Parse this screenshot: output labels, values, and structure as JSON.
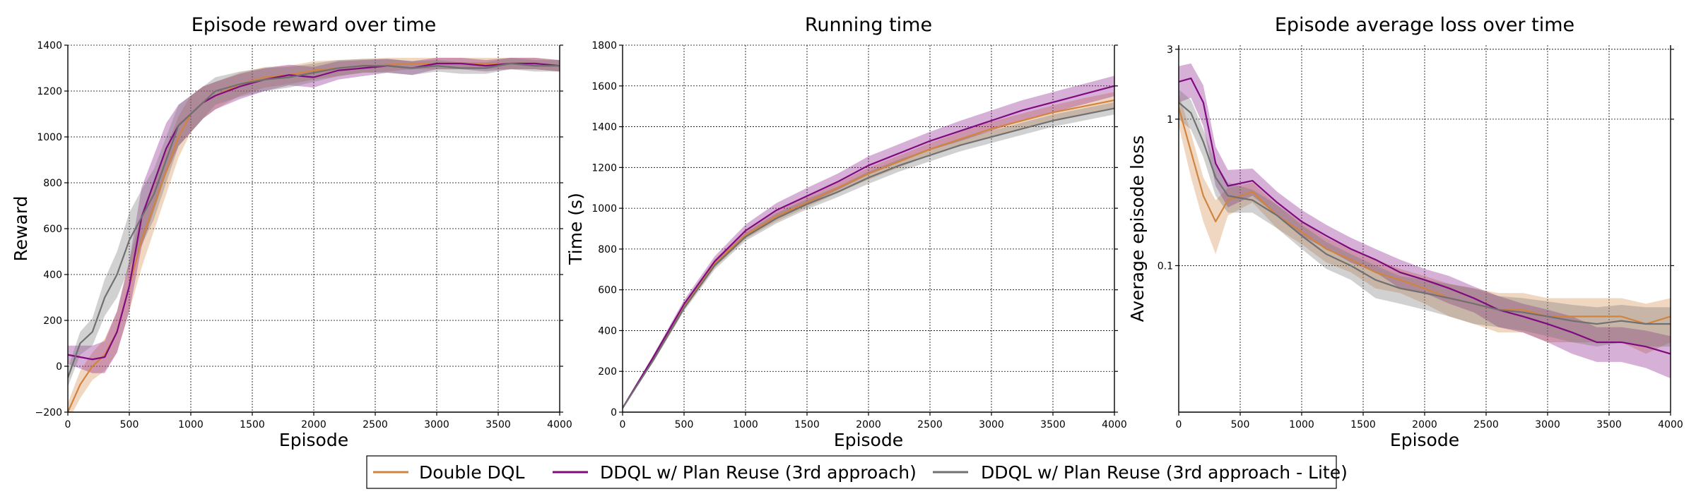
{
  "colors": {
    "double_dql": "#d1843e",
    "ddql_plan_reuse": "#800a80",
    "ddql_plan_reuse_lite": "#707070",
    "grid": "#000000",
    "axes": "#000000"
  },
  "legend": {
    "placement": "bottom-center",
    "items": [
      {
        "label": "Double DQL",
        "color": "#d1843e"
      },
      {
        "label": "DDQL w/ Plan Reuse (3rd approach)",
        "color": "#800a80"
      },
      {
        "label": "DDQL w/ Plan Reuse (3rd approach - Lite)",
        "color": "#707070"
      }
    ]
  },
  "chart_data": [
    {
      "type": "line",
      "title": "Episode reward over time",
      "xlabel": "Episode",
      "ylabel": "Reward",
      "xlim": [
        0,
        4000
      ],
      "ylim": [
        -200,
        1400
      ],
      "xticks": [
        "0",
        "500",
        "1000",
        "1500",
        "2000",
        "2500",
        "3000",
        "3500",
        "4000"
      ],
      "yticks": [
        "−200",
        "0",
        "200",
        "400",
        "600",
        "800",
        "1000",
        "1200",
        "1400"
      ],
      "grid": true,
      "shaded_band": true,
      "series": [
        {
          "name": "Double DQL",
          "x": [
            0,
            100,
            200,
            300,
            400,
            500,
            600,
            700,
            800,
            900,
            1000,
            1100,
            1200,
            1400,
            1600,
            1800,
            2000,
            2200,
            2400,
            2600,
            2800,
            3000,
            3200,
            3400,
            3600,
            3800,
            4000
          ],
          "y": [
            -200,
            -80,
            0,
            50,
            150,
            350,
            550,
            700,
            850,
            1000,
            1100,
            1150,
            1180,
            1230,
            1260,
            1270,
            1290,
            1300,
            1310,
            1315,
            1320,
            1320,
            1320,
            1320,
            1320,
            1320,
            1310
          ],
          "spread": [
            40,
            60,
            60,
            70,
            90,
            110,
            120,
            110,
            100,
            90,
            80,
            70,
            60,
            50,
            45,
            40,
            40,
            35,
            30,
            30,
            25,
            25,
            25,
            25,
            25,
            25,
            25
          ]
        },
        {
          "name": "DDQL w/ Plan Reuse (3rd approach)",
          "x": [
            0,
            100,
            200,
            300,
            400,
            500,
            600,
            700,
            800,
            900,
            1000,
            1100,
            1200,
            1400,
            1600,
            1800,
            2000,
            2200,
            2400,
            2600,
            2800,
            3000,
            3200,
            3400,
            3600,
            3800,
            4000
          ],
          "y": [
            50,
            40,
            30,
            40,
            150,
            350,
            650,
            800,
            950,
            1050,
            1100,
            1150,
            1180,
            1220,
            1250,
            1270,
            1260,
            1290,
            1300,
            1310,
            1300,
            1320,
            1320,
            1310,
            1320,
            1320,
            1310
          ],
          "spread": [
            40,
            50,
            60,
            70,
            90,
            110,
            130,
            120,
            110,
            90,
            80,
            70,
            60,
            55,
            50,
            45,
            45,
            40,
            35,
            30,
            30,
            25,
            25,
            25,
            25,
            25,
            25
          ]
        },
        {
          "name": "DDQL w/ Plan Reuse (3rd approach - Lite)",
          "x": [
            0,
            100,
            200,
            300,
            400,
            500,
            600,
            700,
            800,
            900,
            1000,
            1100,
            1200,
            1400,
            1600,
            1800,
            2000,
            2200,
            2400,
            2600,
            2800,
            3000,
            3200,
            3400,
            3600,
            3800,
            4000
          ],
          "y": [
            -50,
            100,
            150,
            300,
            400,
            550,
            650,
            750,
            900,
            1050,
            1100,
            1150,
            1200,
            1230,
            1250,
            1260,
            1280,
            1300,
            1310,
            1310,
            1300,
            1310,
            1300,
            1300,
            1320,
            1310,
            1310
          ],
          "spread": [
            40,
            50,
            60,
            80,
            100,
            120,
            120,
            110,
            100,
            90,
            80,
            70,
            60,
            55,
            50,
            45,
            40,
            35,
            30,
            30,
            30,
            25,
            25,
            25,
            25,
            25,
            25
          ]
        }
      ]
    },
    {
      "type": "line",
      "title": "Running time",
      "xlabel": "Episode",
      "ylabel": "Time (s)",
      "xlim": [
        0,
        4000
      ],
      "ylim": [
        0,
        1800
      ],
      "xticks": [
        "0",
        "500",
        "1000",
        "1500",
        "2000",
        "2500",
        "3000",
        "3500",
        "4000"
      ],
      "yticks": [
        "0",
        "200",
        "400",
        "600",
        "800",
        "1000",
        "1200",
        "1400",
        "1600",
        "1800"
      ],
      "grid": true,
      "shaded_band": true,
      "series": [
        {
          "name": "Double DQL",
          "x": [
            0,
            250,
            500,
            750,
            1000,
            1250,
            1500,
            1750,
            2000,
            2250,
            2500,
            2750,
            3000,
            3250,
            3500,
            3750,
            4000
          ],
          "y": [
            20,
            260,
            520,
            730,
            870,
            960,
            1030,
            1100,
            1170,
            1230,
            1290,
            1340,
            1390,
            1430,
            1470,
            1500,
            1530
          ],
          "spread": [
            0,
            10,
            15,
            20,
            20,
            25,
            25,
            25,
            30,
            30,
            30,
            35,
            35,
            35,
            35,
            40,
            40
          ]
        },
        {
          "name": "DDQL w/ Plan Reuse (3rd approach)",
          "x": [
            0,
            250,
            500,
            750,
            1000,
            1250,
            1500,
            1750,
            2000,
            2250,
            2500,
            2750,
            3000,
            3250,
            3500,
            3750,
            4000
          ],
          "y": [
            20,
            270,
            530,
            740,
            890,
            990,
            1060,
            1130,
            1210,
            1270,
            1330,
            1380,
            1430,
            1480,
            1520,
            1560,
            1600
          ],
          "spread": [
            0,
            10,
            20,
            25,
            30,
            35,
            40,
            40,
            45,
            45,
            45,
            50,
            50,
            50,
            50,
            50,
            50
          ]
        },
        {
          "name": "DDQL w/ Plan Reuse (3rd approach - Lite)",
          "x": [
            0,
            250,
            500,
            750,
            1000,
            1250,
            1500,
            1750,
            2000,
            2250,
            2500,
            2750,
            3000,
            3250,
            3500,
            3750,
            4000
          ],
          "y": [
            20,
            255,
            510,
            720,
            860,
            950,
            1020,
            1080,
            1150,
            1210,
            1260,
            1310,
            1350,
            1390,
            1430,
            1460,
            1490
          ],
          "spread": [
            0,
            10,
            15,
            20,
            20,
            25,
            25,
            25,
            30,
            30,
            30,
            30,
            30,
            30,
            30,
            30,
            30
          ]
        }
      ]
    },
    {
      "type": "line",
      "title": "Episode average loss over time",
      "xlabel": "Episode",
      "ylabel": "Average episode loss",
      "xlim": [
        0,
        4000
      ],
      "ylim": [
        0.01,
        3.2
      ],
      "yscale": "log",
      "xticks": [
        "0",
        "500",
        "1000",
        "1500",
        "2000",
        "2500",
        "3000",
        "3500",
        "4000"
      ],
      "yticks": [
        "0.1",
        "1",
        "3"
      ],
      "grid": true,
      "shaded_band": true,
      "series": [
        {
          "name": "Double DQL",
          "x": [
            0,
            100,
            200,
            300,
            400,
            600,
            800,
            1000,
            1200,
            1400,
            1600,
            1800,
            2000,
            2200,
            2400,
            2600,
            2800,
            3000,
            3200,
            3400,
            3600,
            3800,
            4000
          ],
          "y": [
            1.2,
            0.6,
            0.3,
            0.2,
            0.28,
            0.32,
            0.22,
            0.17,
            0.13,
            0.11,
            0.09,
            0.08,
            0.07,
            0.06,
            0.055,
            0.05,
            0.05,
            0.045,
            0.045,
            0.045,
            0.045,
            0.04,
            0.045
          ],
          "spread": [
            0.3,
            0.2,
            0.1,
            0.08,
            0.06,
            0.05,
            0.04,
            0.03,
            0.025,
            0.02,
            0.02,
            0.015,
            0.015,
            0.015,
            0.015,
            0.015,
            0.015,
            0.015,
            0.015,
            0.015,
            0.015,
            0.015,
            0.015
          ]
        },
        {
          "name": "DDQL w/ Plan Reuse (3rd approach)",
          "x": [
            0,
            100,
            200,
            300,
            400,
            600,
            800,
            1000,
            1200,
            1400,
            1600,
            1800,
            2000,
            2200,
            2400,
            2600,
            2800,
            3000,
            3200,
            3400,
            3600,
            3800,
            4000
          ],
          "y": [
            1.8,
            1.9,
            1.3,
            0.5,
            0.35,
            0.38,
            0.27,
            0.2,
            0.16,
            0.13,
            0.11,
            0.09,
            0.08,
            0.07,
            0.06,
            0.05,
            0.045,
            0.04,
            0.035,
            0.03,
            0.03,
            0.028,
            0.025
          ],
          "spread": [
            0.5,
            0.5,
            0.4,
            0.15,
            0.1,
            0.08,
            0.05,
            0.04,
            0.03,
            0.025,
            0.02,
            0.02,
            0.015,
            0.015,
            0.012,
            0.012,
            0.01,
            0.01,
            0.01,
            0.008,
            0.008,
            0.008,
            0.008
          ]
        },
        {
          "name": "DDQL w/ Plan Reuse (3rd approach - Lite)",
          "x": [
            0,
            100,
            200,
            300,
            400,
            600,
            800,
            1000,
            1200,
            1400,
            1600,
            1800,
            2000,
            2200,
            2400,
            2600,
            2800,
            3000,
            3200,
            3400,
            3600,
            3800,
            4000
          ],
          "y": [
            1.3,
            1.1,
            0.7,
            0.4,
            0.3,
            0.28,
            0.22,
            0.16,
            0.12,
            0.1,
            0.08,
            0.07,
            0.065,
            0.06,
            0.055,
            0.05,
            0.048,
            0.045,
            0.042,
            0.04,
            0.042,
            0.04,
            0.04
          ],
          "spread": [
            0.3,
            0.25,
            0.15,
            0.1,
            0.07,
            0.05,
            0.04,
            0.03,
            0.025,
            0.02,
            0.02,
            0.015,
            0.015,
            0.015,
            0.015,
            0.012,
            0.012,
            0.012,
            0.012,
            0.012,
            0.012,
            0.012,
            0.012
          ]
        }
      ]
    }
  ]
}
